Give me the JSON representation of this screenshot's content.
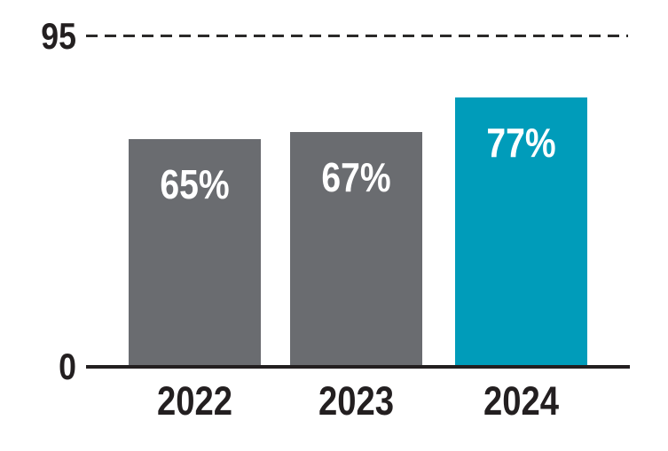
{
  "chart_data": {
    "type": "bar",
    "categories": [
      "2022",
      "2023",
      "2024"
    ],
    "values": [
      65,
      67,
      77
    ],
    "value_labels": [
      "65%",
      "67%",
      "77%"
    ],
    "title": "",
    "xlabel": "",
    "ylabel": "",
    "ylim": [
      0,
      95
    ],
    "yticks": [
      0,
      95
    ],
    "ytick_labels": [
      "0",
      "95"
    ],
    "reference_line": {
      "value": 95,
      "style": "dashed",
      "color": "#2b2a29"
    },
    "grid": false,
    "legend": false,
    "bar_colors": [
      "#6a6c70",
      "#6a6c70",
      "#009cba"
    ],
    "bar_label_color": "#ffffff",
    "axis_color": "#231f20",
    "background_color": "#ffffff"
  }
}
